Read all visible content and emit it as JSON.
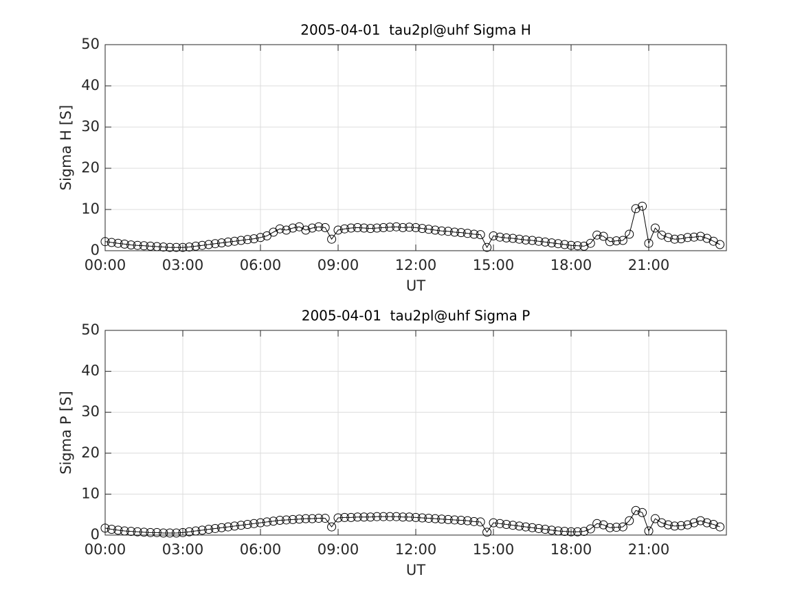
{
  "chart_data": [
    {
      "type": "line",
      "title": "2005-04-01  tau2pl@uhf Sigma H",
      "xlabel": "UT",
      "ylabel": "Sigma H [S]",
      "color": "#000000",
      "grid": true,
      "marker": "circle",
      "x": [
        0,
        0.25,
        0.5,
        0.75,
        1,
        1.25,
        1.5,
        1.75,
        2,
        2.25,
        2.5,
        2.75,
        3,
        3.25,
        3.5,
        3.75,
        4,
        4.25,
        4.5,
        4.75,
        5,
        5.25,
        5.5,
        5.75,
        6,
        6.25,
        6.5,
        6.75,
        7,
        7.25,
        7.5,
        7.75,
        8,
        8.25,
        8.5,
        8.75,
        9,
        9.25,
        9.5,
        9.75,
        10,
        10.25,
        10.5,
        10.75,
        11,
        11.25,
        11.5,
        11.75,
        12,
        12.25,
        12.5,
        12.75,
        13,
        13.25,
        13.5,
        13.75,
        14,
        14.25,
        14.5,
        14.75,
        15,
        15.25,
        15.5,
        15.75,
        16,
        16.25,
        16.5,
        16.75,
        17,
        17.25,
        17.5,
        17.75,
        18,
        18.25,
        18.5,
        18.75,
        19,
        19.25,
        19.5,
        19.75,
        20,
        20.25,
        20.5,
        20.75,
        21,
        21.25,
        21.5,
        21.75,
        22,
        22.25,
        22.5,
        22.75,
        23,
        23.25,
        23.5,
        23.75
      ],
      "values": [
        2.2,
        2.0,
        1.8,
        1.6,
        1.4,
        1.3,
        1.2,
        1.1,
        1.0,
        0.9,
        0.8,
        0.8,
        0.8,
        0.9,
        1.1,
        1.3,
        1.5,
        1.7,
        1.9,
        2.1,
        2.3,
        2.5,
        2.7,
        2.9,
        3.2,
        3.6,
        4.5,
        5.3,
        5.0,
        5.5,
        5.8,
        5.0,
        5.5,
        5.8,
        5.6,
        2.8,
        5.0,
        5.3,
        5.5,
        5.6,
        5.5,
        5.4,
        5.5,
        5.6,
        5.7,
        5.8,
        5.6,
        5.7,
        5.6,
        5.4,
        5.2,
        5.0,
        4.8,
        4.7,
        4.5,
        4.4,
        4.2,
        4.0,
        3.9,
        0.8,
        3.6,
        3.3,
        3.1,
        3.0,
        2.8,
        2.6,
        2.5,
        2.3,
        2.1,
        1.9,
        1.7,
        1.5,
        1.3,
        1.2,
        1.1,
        1.8,
        3.8,
        3.5,
        2.2,
        2.4,
        2.5,
        4.0,
        10.2,
        10.8,
        1.8,
        5.5,
        3.8,
        3.2,
        2.8,
        2.9,
        3.2,
        3.3,
        3.5,
        3.0,
        2.3,
        1.5
      ],
      "xlim": [
        0,
        24
      ],
      "xticks": [
        {
          "value": 0,
          "label": "00:00"
        },
        {
          "value": 3,
          "label": "03:00"
        },
        {
          "value": 6,
          "label": "06:00"
        },
        {
          "value": 9,
          "label": "09:00"
        },
        {
          "value": 12,
          "label": "12:00"
        },
        {
          "value": 15,
          "label": "15:00"
        },
        {
          "value": 18,
          "label": "18:00"
        },
        {
          "value": 21,
          "label": "21:00"
        }
      ],
      "ylim": [
        0,
        50
      ],
      "yticks": [
        0,
        10,
        20,
        30,
        40,
        50
      ]
    },
    {
      "type": "line",
      "title": "2005-04-01  tau2pl@uhf Sigma P",
      "xlabel": "UT",
      "ylabel": "Sigma P [S]",
      "color": "#000000",
      "grid": true,
      "marker": "circle",
      "x": [
        0,
        0.25,
        0.5,
        0.75,
        1,
        1.25,
        1.5,
        1.75,
        2,
        2.25,
        2.5,
        2.75,
        3,
        3.25,
        3.5,
        3.75,
        4,
        4.25,
        4.5,
        4.75,
        5,
        5.25,
        5.5,
        5.75,
        6,
        6.25,
        6.5,
        6.75,
        7,
        7.25,
        7.5,
        7.75,
        8,
        8.25,
        8.5,
        8.75,
        9,
        9.25,
        9.5,
        9.75,
        10,
        10.25,
        10.5,
        10.75,
        11,
        11.25,
        11.5,
        11.75,
        12,
        12.25,
        12.5,
        12.75,
        13,
        13.25,
        13.5,
        13.75,
        14,
        14.25,
        14.5,
        14.75,
        15,
        15.25,
        15.5,
        15.75,
        16,
        16.25,
        16.5,
        16.75,
        17,
        17.25,
        17.5,
        17.75,
        18,
        18.25,
        18.5,
        18.75,
        19,
        19.25,
        19.5,
        19.75,
        20,
        20.25,
        20.5,
        20.75,
        21,
        21.25,
        21.5,
        21.75,
        22,
        22.25,
        22.5,
        22.75,
        23,
        23.25,
        23.5,
        23.75
      ],
      "values": [
        1.7,
        1.4,
        1.2,
        1.0,
        0.9,
        0.8,
        0.7,
        0.6,
        0.6,
        0.5,
        0.5,
        0.5,
        0.6,
        0.8,
        1.0,
        1.2,
        1.4,
        1.6,
        1.8,
        2.0,
        2.2,
        2.4,
        2.6,
        2.8,
        3.0,
        3.2,
        3.4,
        3.6,
        3.7,
        3.8,
        3.9,
        4.0,
        4.0,
        4.1,
        4.1,
        2.0,
        4.2,
        4.3,
        4.3,
        4.4,
        4.4,
        4.4,
        4.5,
        4.5,
        4.5,
        4.5,
        4.4,
        4.4,
        4.3,
        4.2,
        4.1,
        4.0,
        3.9,
        3.8,
        3.7,
        3.6,
        3.5,
        3.3,
        3.2,
        0.7,
        3.0,
        2.8,
        2.6,
        2.4,
        2.2,
        2.0,
        1.8,
        1.6,
        1.4,
        1.2,
        1.0,
        0.9,
        0.8,
        0.8,
        0.9,
        1.5,
        2.8,
        2.5,
        1.8,
        1.9,
        2.0,
        3.5,
        6.0,
        5.5,
        1.0,
        4.0,
        3.0,
        2.5,
        2.2,
        2.3,
        2.5,
        3.0,
        3.5,
        3.0,
        2.6,
        2.0
      ],
      "xlim": [
        0,
        24
      ],
      "xticks": [
        {
          "value": 0,
          "label": "00:00"
        },
        {
          "value": 3,
          "label": "03:00"
        },
        {
          "value": 6,
          "label": "06:00"
        },
        {
          "value": 9,
          "label": "09:00"
        },
        {
          "value": 12,
          "label": "12:00"
        },
        {
          "value": 15,
          "label": "15:00"
        },
        {
          "value": 18,
          "label": "18:00"
        },
        {
          "value": 21,
          "label": "21:00"
        }
      ],
      "ylim": [
        0,
        50
      ],
      "yticks": [
        0,
        10,
        20,
        30,
        40,
        50
      ]
    }
  ]
}
